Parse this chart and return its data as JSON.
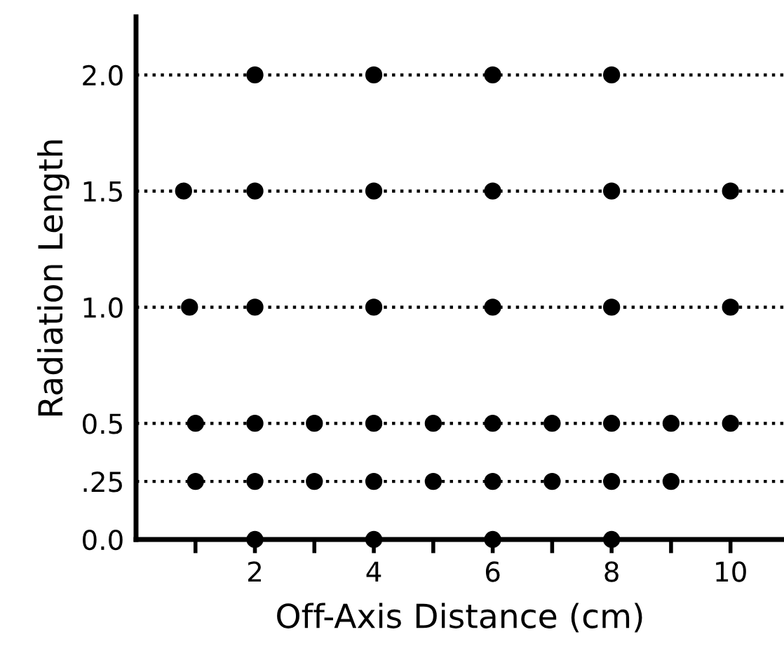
{
  "chart_data": {
    "type": "scatter",
    "xlabel": "Off-Axis Distance (cm)",
    "ylabel": "Radiation Length",
    "series": [
      {
        "color": "#000000",
        "x": [
          2,
          4,
          6,
          8
        ],
        "values": [
          2.0,
          2.0,
          2.0,
          2.0
        ]
      },
      {
        "color": "#000000",
        "x": [
          0.8,
          2,
          4,
          6,
          8,
          10
        ],
        "values": [
          1.5,
          1.5,
          1.5,
          1.5,
          1.5,
          1.5
        ]
      },
      {
        "color": "#000000",
        "x": [
          0.9,
          2,
          4,
          6,
          8,
          10
        ],
        "values": [
          1.0,
          1.0,
          1.0,
          1.0,
          1.0,
          1.0
        ]
      },
      {
        "color": "#000000",
        "x": [
          1,
          2,
          3,
          4,
          5,
          6,
          7,
          8,
          9,
          10
        ],
        "values": [
          0.5,
          0.5,
          0.5,
          0.5,
          0.5,
          0.5,
          0.5,
          0.5,
          0.5,
          0.5
        ]
      },
      {
        "color": "#000000",
        "x": [
          1,
          2,
          3,
          4,
          5,
          6,
          7,
          8,
          9
        ],
        "values": [
          0.25,
          0.25,
          0.25,
          0.25,
          0.25,
          0.25,
          0.25,
          0.25,
          0.25
        ]
      },
      {
        "color": "#000000",
        "x": [
          2,
          4,
          6,
          8
        ],
        "values": [
          0.0,
          0.0,
          0.0,
          0.0
        ]
      }
    ],
    "ref_lines": [
      {
        "axis": "y",
        "value": 2.0,
        "line_style": "dotted",
        "color": "#000000"
      },
      {
        "axis": "y",
        "value": 1.5,
        "line_style": "dotted",
        "color": "#000000"
      },
      {
        "axis": "y",
        "value": 1.0,
        "line_style": "dotted",
        "color": "#000000"
      },
      {
        "axis": "y",
        "value": 0.5,
        "line_style": "dotted",
        "color": "#000000"
      },
      {
        "axis": "y",
        "value": 0.25,
        "line_style": "dotted",
        "color": "#000000"
      }
    ],
    "xlim": [
      0,
      10.9
    ],
    "ylim": [
      0,
      2.25
    ],
    "xticks": [
      {
        "value": 1,
        "label": null
      },
      2,
      {
        "value": 3,
        "label": null
      },
      4,
      {
        "value": 5,
        "label": null
      },
      6,
      {
        "value": 7,
        "label": null
      },
      8,
      {
        "value": 9,
        "label": null
      },
      10
    ],
    "yticks": [
      {
        "value": 0,
        "label": "0.0"
      },
      {
        "value": 0.25,
        "label": ".25"
      },
      {
        "value": 0.5,
        "label": "0.5"
      },
      {
        "value": 1,
        "label": "1.0"
      },
      {
        "value": 1.5,
        "label": "1.5"
      },
      {
        "value": 2,
        "label": "2.0"
      }
    ],
    "marker": "circle",
    "grid": false,
    "legend": false
  }
}
